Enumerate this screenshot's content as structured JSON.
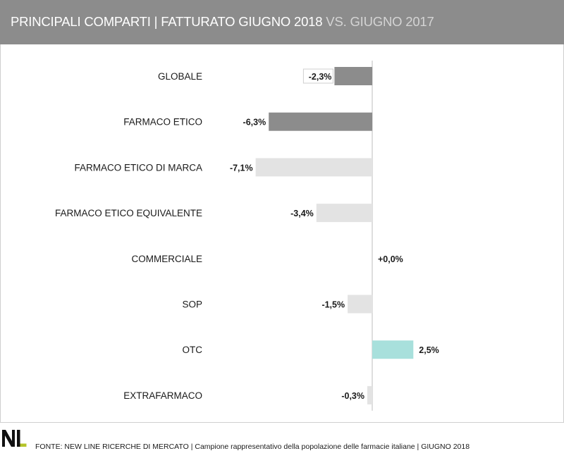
{
  "header": {
    "title_main": "PRINCIPALI COMPARTI | FATTURATO GIUGNO 2018",
    "title_secondary": " VS. GIUGNO 2017"
  },
  "chart_data": {
    "type": "bar",
    "orientation": "horizontal",
    "categories": [
      "GLOBALE",
      "FARMACO ETICO",
      "FARMACO ETICO DI MARCA",
      "FARMACO ETICO EQUIVALENTE",
      "COMMERCIALE",
      "SOP",
      "OTC",
      "EXTRAFARMACO"
    ],
    "values": [
      -2.3,
      -6.3,
      -7.1,
      -3.4,
      0.0,
      -1.5,
      2.5,
      -0.3
    ],
    "value_labels": [
      "-2,3%",
      "-6,3%",
      "-7,1%",
      "-3,4%",
      "+0,0%",
      "-1,5%",
      "2,5%",
      "-0,3%"
    ],
    "bar_colors": [
      "#8c8c8c",
      "#8c8c8c",
      "#e3e3e3",
      "#e3e3e3",
      "#e3e3e3",
      "#e3e3e3",
      "#a8e0dc",
      "#e3e3e3"
    ],
    "xlim": [
      -7.1,
      2.5
    ],
    "grid": false
  },
  "footer": {
    "logo_text": "NL",
    "logo_accent_color": "#b5c42a",
    "source": "FONTE: NEW LINE RICERCHE DI MERCATO | Campione rappresentativo della popolazione delle farmacie italiane | GIUGNO 2018"
  }
}
